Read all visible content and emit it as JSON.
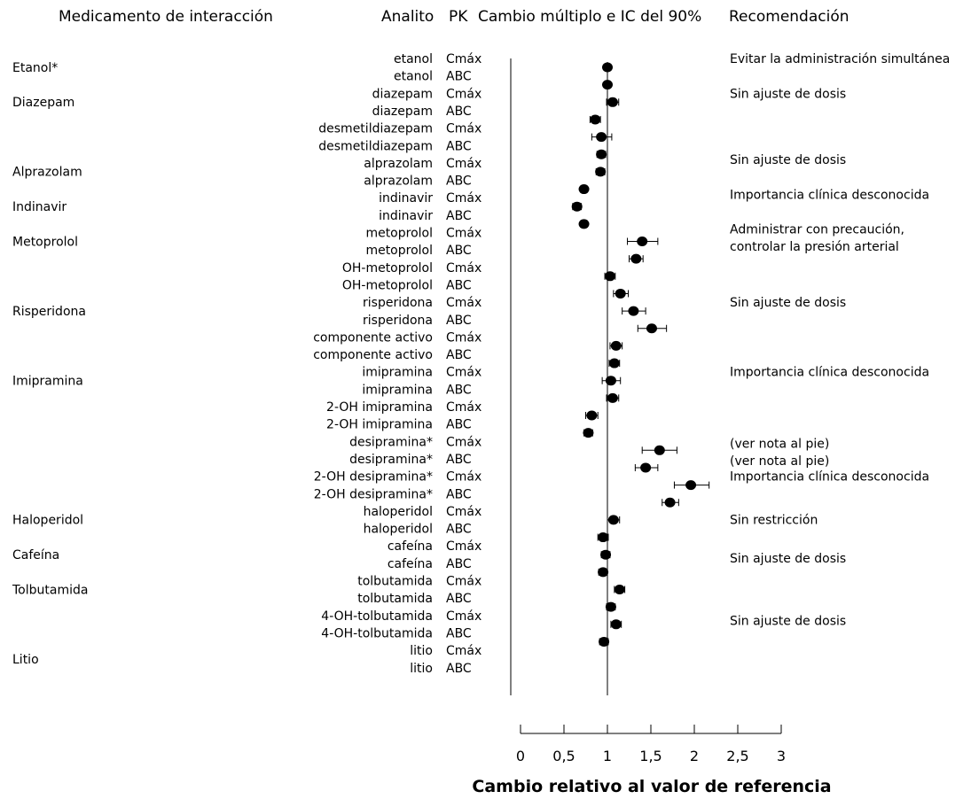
{
  "chart_data": {
    "type": "scatter",
    "headers": {
      "drug": "Medicamento de interacción",
      "analyte": "Analito",
      "pk": "PK",
      "ci": "Cambio múltiplo e IC del 90%",
      "rec": "Recomendación"
    },
    "xlabel": "Cambio relativo al valor de referencia",
    "xlim": [
      0,
      3
    ],
    "xticks": [
      "0",
      "0,5",
      "1",
      "1,5",
      "2",
      "2,5",
      "3"
    ],
    "xtick_values": [
      0,
      0.5,
      1,
      1.5,
      2,
      2.5,
      3
    ],
    "reference_line": 1,
    "drugs": [
      {
        "name": "Etanol*",
        "row": 0.5
      },
      {
        "name": "Diazepam",
        "row": 2.5
      },
      {
        "name": "Alprazolam",
        "row": 6.5
      },
      {
        "name": "Indinavir",
        "row": 8.5
      },
      {
        "name": "Metoprolol",
        "row": 10.5
      },
      {
        "name": "Risperidona",
        "row": 14.5
      },
      {
        "name": "Imipramina",
        "row": 18.5
      },
      {
        "name": "Haloperidol",
        "row": 26.5
      },
      {
        "name": "Cafeína",
        "row": 28.5
      },
      {
        "name": "Tolbutamida",
        "row": 30.5
      },
      {
        "name": "Litio",
        "row": 34.5
      }
    ],
    "rows": [
      {
        "analyte": "etanol",
        "pk": "Cmáx",
        "value": 1.0,
        "lo": 0.96,
        "hi": 1.04
      },
      {
        "analyte": "etanol",
        "pk": "ABC",
        "value": 1.0,
        "lo": 0.97,
        "hi": 1.03
      },
      {
        "analyte": "diazepam",
        "pk": "Cmáx",
        "value": 1.06,
        "lo": 0.99,
        "hi": 1.13
      },
      {
        "analyte": "diazepam",
        "pk": "ABC",
        "value": 0.86,
        "lo": 0.8,
        "hi": 0.92
      },
      {
        "analyte": "desmetildiazepam",
        "pk": "Cmáx",
        "value": 0.93,
        "lo": 0.82,
        "hi": 1.05
      },
      {
        "analyte": "desmetildiazepam",
        "pk": "ABC",
        "value": 0.93,
        "lo": 0.88,
        "hi": 0.98
      },
      {
        "analyte": "alprazolam",
        "pk": "Cmáx",
        "value": 0.92,
        "lo": 0.87,
        "hi": 0.97
      },
      {
        "analyte": "alprazolam",
        "pk": "ABC",
        "value": 0.73,
        "lo": 0.69,
        "hi": 0.77
      },
      {
        "analyte": "indinavir",
        "pk": "Cmáx",
        "value": 0.65,
        "lo": 0.6,
        "hi": 0.7
      },
      {
        "analyte": "indinavir",
        "pk": "ABC",
        "value": 0.73,
        "lo": 0.69,
        "hi": 0.77
      },
      {
        "analyte": "metoprolol",
        "pk": "Cmáx",
        "value": 1.4,
        "lo": 1.23,
        "hi": 1.58
      },
      {
        "analyte": "metoprolol",
        "pk": "ABC",
        "value": 1.33,
        "lo": 1.25,
        "hi": 1.41
      },
      {
        "analyte": "OH-metoprolol",
        "pk": "Cmáx",
        "value": 1.03,
        "lo": 0.97,
        "hi": 1.09
      },
      {
        "analyte": "OH-metoprolol",
        "pk": "ABC",
        "value": 1.15,
        "lo": 1.07,
        "hi": 1.24
      },
      {
        "analyte": "risperidona",
        "pk": "Cmáx",
        "value": 1.3,
        "lo": 1.17,
        "hi": 1.44
      },
      {
        "analyte": "risperidona",
        "pk": "ABC",
        "value": 1.51,
        "lo": 1.35,
        "hi": 1.68
      },
      {
        "analyte": "componente activo",
        "pk": "Cmáx",
        "value": 1.1,
        "lo": 1.03,
        "hi": 1.17
      },
      {
        "analyte": "componente activo",
        "pk": "ABC",
        "value": 1.08,
        "lo": 1.02,
        "hi": 1.14
      },
      {
        "analyte": "imipramina",
        "pk": "Cmáx",
        "value": 1.04,
        "lo": 0.94,
        "hi": 1.15
      },
      {
        "analyte": "imipramina",
        "pk": "ABC",
        "value": 1.06,
        "lo": 0.99,
        "hi": 1.13
      },
      {
        "analyte": "2-OH imipramina",
        "pk": "Cmáx",
        "value": 0.82,
        "lo": 0.75,
        "hi": 0.89
      },
      {
        "analyte": "2-OH imipramina",
        "pk": "ABC",
        "value": 0.78,
        "lo": 0.73,
        "hi": 0.83
      },
      {
        "analyte": "desipramina*",
        "pk": "Cmáx",
        "value": 1.6,
        "lo": 1.4,
        "hi": 1.8
      },
      {
        "analyte": "desipramina*",
        "pk": "ABC",
        "value": 1.44,
        "lo": 1.32,
        "hi": 1.58
      },
      {
        "analyte": "2-OH desipramina*",
        "pk": "Cmáx",
        "value": 1.96,
        "lo": 1.77,
        "hi": 2.17
      },
      {
        "analyte": "2-OH desipramina*",
        "pk": "ABC",
        "value": 1.72,
        "lo": 1.63,
        "hi": 1.82
      },
      {
        "analyte": "haloperidol",
        "pk": "Cmáx",
        "value": 1.07,
        "lo": 1.0,
        "hi": 1.14
      },
      {
        "analyte": "haloperidol",
        "pk": "ABC",
        "value": 0.95,
        "lo": 0.89,
        "hi": 1.01
      },
      {
        "analyte": "cafeína",
        "pk": "Cmáx",
        "value": 0.98,
        "lo": 0.93,
        "hi": 1.03
      },
      {
        "analyte": "cafeína",
        "pk": "ABC",
        "value": 0.95,
        "lo": 0.9,
        "hi": 1.0
      },
      {
        "analyte": "tolbutamida",
        "pk": "Cmáx",
        "value": 1.14,
        "lo": 1.08,
        "hi": 1.2
      },
      {
        "analyte": "tolbutamida",
        "pk": "ABC",
        "value": 1.04,
        "lo": 0.99,
        "hi": 1.09
      },
      {
        "analyte": "4-OH-tolbutamida",
        "pk": "Cmáx",
        "value": 1.1,
        "lo": 1.04,
        "hi": 1.16
      },
      {
        "analyte": "4-OH-tolbutamida",
        "pk": "ABC",
        "value": 0.96,
        "lo": 0.91,
        "hi": 1.01
      },
      {
        "analyte": "litio",
        "pk": "Cmáx",
        "value": null,
        "lo": null,
        "hi": null
      },
      {
        "analyte": "litio",
        "pk": "ABC",
        "value": null,
        "lo": null,
        "hi": null
      }
    ],
    "recommendations": [
      {
        "text": "Evitar la administración simultánea",
        "row": 0
      },
      {
        "text": "Sin ajuste de dosis",
        "row": 2
      },
      {
        "text": "Sin ajuste de dosis",
        "row": 5.8
      },
      {
        "text": "Importancia clínica desconocida",
        "row": 7.8
      },
      {
        "text": "Administrar con precaución,",
        "row": 9.8
      },
      {
        "text": "controlar la presión arterial",
        "row": 10.8
      },
      {
        "text": "Sin ajuste de dosis",
        "row": 14
      },
      {
        "text": "Importancia clínica desconocida",
        "row": 18
      },
      {
        "text": "(ver nota al pie)",
        "row": 22.1
      },
      {
        "text": "(ver nota al pie)",
        "row": 23.1
      },
      {
        "text": "Importancia clínica desconocida",
        "row": 24
      },
      {
        "text": "Sin restricción",
        "row": 26.5
      },
      {
        "text": "Sin ajuste de dosis",
        "row": 28.7
      },
      {
        "text": "Sin ajuste de dosis",
        "row": 32.3
      }
    ]
  }
}
